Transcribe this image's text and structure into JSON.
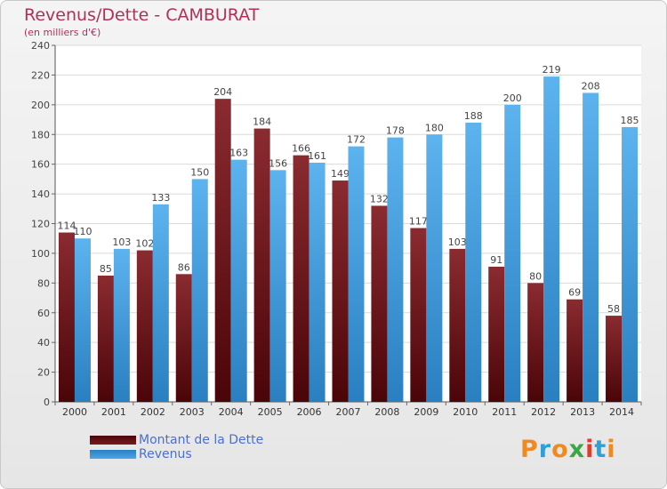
{
  "header": {
    "title": "Revenus/Dette - CAMBURAT",
    "subtitle": "(en milliers d'€)"
  },
  "legend": {
    "items": [
      {
        "label": "Montant de la Dette",
        "color": "#7a1a1f"
      },
      {
        "label": "Revenus",
        "color": "#4da6e8"
      }
    ]
  },
  "logo": {
    "letters": [
      "P",
      "r",
      "o",
      "x",
      "i",
      "t",
      "i"
    ],
    "colors": [
      "#f08a1e",
      "#2f9fd8",
      "#f08a1e",
      "#3aa646",
      "#e23b2e",
      "#2f9fd8",
      "#f08a1e"
    ]
  },
  "chart_data": {
    "type": "bar",
    "title": "Revenus/Dette - CAMBURAT",
    "subtitle": "(en milliers d'€)",
    "categories": [
      "2000",
      "2001",
      "2002",
      "2003",
      "2004",
      "2005",
      "2006",
      "2007",
      "2008",
      "2009",
      "2010",
      "2011",
      "2012",
      "2013",
      "2014"
    ],
    "series": [
      {
        "name": "Montant de la Dette",
        "color": "#7a1a1f",
        "values": [
          114,
          85,
          102,
          86,
          204,
          184,
          166,
          149,
          132,
          117,
          103,
          91,
          80,
          69,
          58
        ]
      },
      {
        "name": "Revenus",
        "color": "#4da6e8",
        "values": [
          110,
          103,
          133,
          150,
          163,
          156,
          161,
          172,
          178,
          180,
          188,
          200,
          219,
          208,
          185
        ]
      }
    ],
    "ylim": [
      0,
      240
    ],
    "yticks": [
      0,
      20,
      40,
      60,
      80,
      100,
      120,
      140,
      160,
      180,
      200,
      220,
      240
    ],
    "grid": true,
    "legend_position": "bottom-left"
  }
}
